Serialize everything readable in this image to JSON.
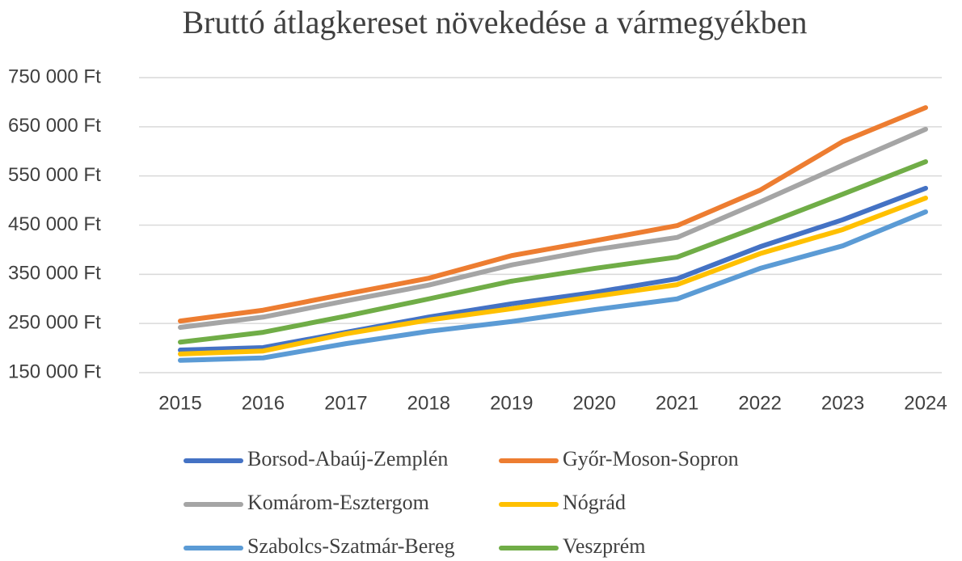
{
  "chart_data": {
    "type": "line",
    "title": "Bruttó átlagkereset növekedése a vármegyékben",
    "categories": [
      "2015",
      "2016",
      "2017",
      "2018",
      "2019",
      "2020",
      "2021",
      "2022",
      "2023",
      "2024"
    ],
    "series": [
      {
        "name": "Borsod-Abaúj-Zemplén",
        "color": "#4472c4",
        "values": [
          196000,
          201000,
          232000,
          263000,
          290000,
          313000,
          341000,
          406000,
          461000,
          525000
        ]
      },
      {
        "name": "Győr-Moson-Sopron",
        "color": "#ed7d31",
        "values": [
          255000,
          277000,
          310000,
          342000,
          388000,
          418000,
          449000,
          521000,
          620000,
          689000
        ]
      },
      {
        "name": "Komárom-Esztergom",
        "color": "#a5a5a5",
        "values": [
          242000,
          263000,
          296000,
          328000,
          369000,
          400000,
          425000,
          497000,
          572000,
          645000
        ]
      },
      {
        "name": "Nógrád",
        "color": "#ffc000",
        "values": [
          188000,
          194000,
          229000,
          257000,
          280000,
          305000,
          329000,
          392000,
          441000,
          505000
        ]
      },
      {
        "name": "Szabolcs-Szatmár-Bereg",
        "color": "#5b9bd5",
        "values": [
          175000,
          180000,
          209000,
          234000,
          254000,
          278000,
          300000,
          362000,
          408000,
          477000
        ]
      },
      {
        "name": "Veszprém",
        "color": "#70ad47",
        "values": [
          212000,
          232000,
          265000,
          300000,
          336000,
          362000,
          385000,
          448000,
          513000,
          579000
        ]
      }
    ],
    "ylim": [
      150000,
      750000
    ],
    "yticks": [
      {
        "value": 150000,
        "label": "150 000 Ft"
      },
      {
        "value": 250000,
        "label": "250 000 Ft"
      },
      {
        "value": 350000,
        "label": "350 000 Ft"
      },
      {
        "value": 450000,
        "label": "450 000 Ft"
      },
      {
        "value": 550000,
        "label": "550 000 Ft"
      },
      {
        "value": 650000,
        "label": "650 000 Ft"
      },
      {
        "value": 750000,
        "label": "750 000 Ft"
      }
    ],
    "grid": true
  }
}
